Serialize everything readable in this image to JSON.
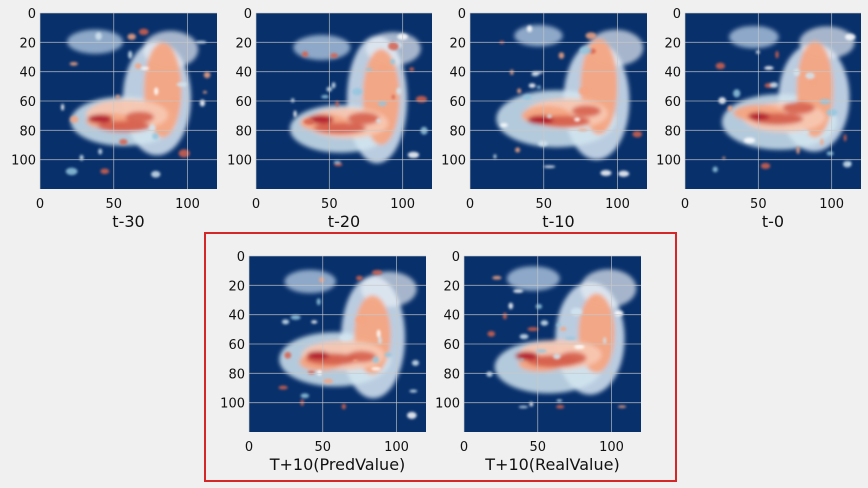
{
  "colors": {
    "background": "#f0f0f0",
    "panel_base": "#08306b",
    "highlight_border": "#d62728",
    "grid": "#c8c8c8"
  },
  "colormap": "RdBu_r",
  "chart_data": [
    {
      "type": "heatmap",
      "title": "",
      "xlabel": "t-30",
      "ylabel": "",
      "xlim": [
        0,
        120
      ],
      "ylim": [
        120,
        0
      ],
      "xticks": [
        "0",
        "50",
        "100"
      ],
      "yticks": [
        "0",
        "20",
        "40",
        "60",
        "80",
        "100"
      ],
      "grid": true,
      "description": "radar echo field"
    },
    {
      "type": "heatmap",
      "title": "",
      "xlabel": "t-20",
      "ylabel": "",
      "xlim": [
        0,
        120
      ],
      "ylim": [
        120,
        0
      ],
      "xticks": [
        "0",
        "50",
        "100"
      ],
      "yticks": [
        "0",
        "20",
        "40",
        "60",
        "80",
        "100"
      ],
      "grid": true
    },
    {
      "type": "heatmap",
      "title": "",
      "xlabel": "t-10",
      "ylabel": "",
      "xlim": [
        0,
        120
      ],
      "ylim": [
        120,
        0
      ],
      "xticks": [
        "0",
        "50",
        "100"
      ],
      "yticks": [
        "0",
        "20",
        "40",
        "60",
        "80",
        "100"
      ],
      "grid": true
    },
    {
      "type": "heatmap",
      "title": "",
      "xlabel": "t-0",
      "ylabel": "",
      "xlim": [
        0,
        120
      ],
      "ylim": [
        120,
        0
      ],
      "xticks": [
        "0",
        "50",
        "100"
      ],
      "yticks": [
        "0",
        "20",
        "40",
        "60",
        "80",
        "100"
      ],
      "grid": true
    },
    {
      "type": "heatmap",
      "title": "",
      "xlabel": "T+10(PredValue)",
      "ylabel": "",
      "xlim": [
        0,
        120
      ],
      "ylim": [
        120,
        0
      ],
      "xticks": [
        "0",
        "50",
        "100"
      ],
      "yticks": [
        "0",
        "20",
        "40",
        "60",
        "80",
        "100"
      ],
      "grid": true
    },
    {
      "type": "heatmap",
      "title": "",
      "xlabel": "T+10(RealValue)",
      "ylabel": "",
      "xlim": [
        0,
        120
      ],
      "ylim": [
        120,
        0
      ],
      "xticks": [
        "0",
        "50",
        "100"
      ],
      "yticks": [
        "0",
        "20",
        "40",
        "60",
        "80",
        "100"
      ],
      "grid": true
    }
  ]
}
